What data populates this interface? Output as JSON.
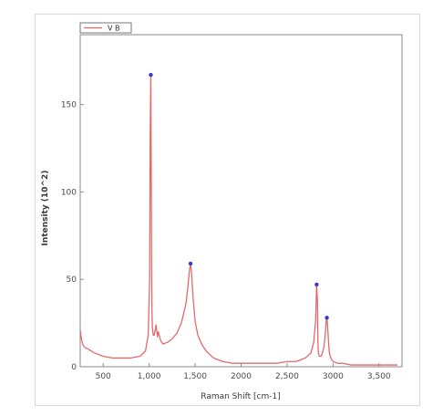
{
  "chart_data": {
    "type": "line",
    "title": "",
    "xlabel": "Raman Shift [cm-1]",
    "ylabel": "Intensity (10^2)",
    "xlim": [
      250,
      3750
    ],
    "ylim": [
      0,
      190
    ],
    "xticks": [
      {
        "value": 500,
        "label": "500"
      },
      {
        "value": 1000,
        "label": "1,000"
      },
      {
        "value": 1500,
        "label": "1,500"
      },
      {
        "value": 2000,
        "label": "2000"
      },
      {
        "value": 2500,
        "label": "2,500"
      },
      {
        "value": 3000,
        "label": "3000"
      },
      {
        "value": 3500,
        "label": "3,500"
      }
    ],
    "yticks": [
      {
        "value": 0,
        "label": "0"
      },
      {
        "value": 50,
        "label": "50"
      },
      {
        "value": 100,
        "label": "100"
      },
      {
        "value": 150,
        "label": "150"
      }
    ],
    "grid": false,
    "legend": {
      "position": "top-left",
      "entries": [
        "V B"
      ]
    },
    "colors": {
      "line": "#e06a6a",
      "marker": "#3a3ad0",
      "axis": "#888888",
      "legend_border": "#555555"
    },
    "series": [
      {
        "name": "V B",
        "x": [
          250,
          260,
          275,
          300,
          340,
          400,
          500,
          600,
          700,
          800,
          900,
          960,
          990,
          1005,
          1012,
          1018,
          1022,
          1026,
          1030,
          1035,
          1045,
          1055,
          1065,
          1075,
          1090,
          1100,
          1110,
          1125,
          1150,
          1200,
          1250,
          1300,
          1350,
          1400,
          1420,
          1440,
          1450,
          1460,
          1480,
          1500,
          1530,
          1570,
          1620,
          1700,
          1800,
          1900,
          2000,
          2100,
          2200,
          2300,
          2400,
          2500,
          2600,
          2700,
          2760,
          2790,
          2810,
          2822,
          2830,
          2835,
          2840,
          2850,
          2860,
          2870,
          2885,
          2900,
          2915,
          2925,
          2933,
          2940,
          2950,
          2960,
          2975,
          3000,
          3050,
          3100,
          3200,
          3300,
          3400,
          3500,
          3600,
          3700
        ],
        "y": [
          21,
          17,
          13,
          11,
          10,
          8,
          6,
          5,
          5,
          5,
          6,
          9,
          18,
          50,
          135,
          167,
          120,
          65,
          34,
          22,
          18,
          18,
          21,
          24,
          17,
          20,
          18,
          15,
          13,
          14,
          16,
          19,
          25,
          36,
          45,
          56,
          59,
          54,
          38,
          26,
          18,
          13,
          9,
          5,
          3,
          2,
          2,
          2,
          2,
          2,
          2,
          3,
          3,
          5,
          8,
          14,
          26,
          47,
          38,
          15,
          8,
          6,
          6,
          6,
          8,
          11,
          18,
          26,
          28,
          24,
          15,
          8,
          5,
          3,
          2,
          2,
          1,
          1,
          1,
          1,
          1,
          1
        ]
      }
    ],
    "peaks": [
      {
        "x": 1018,
        "y": 167
      },
      {
        "x": 1450,
        "y": 59
      },
      {
        "x": 2822,
        "y": 47
      },
      {
        "x": 2933,
        "y": 28
      }
    ]
  }
}
